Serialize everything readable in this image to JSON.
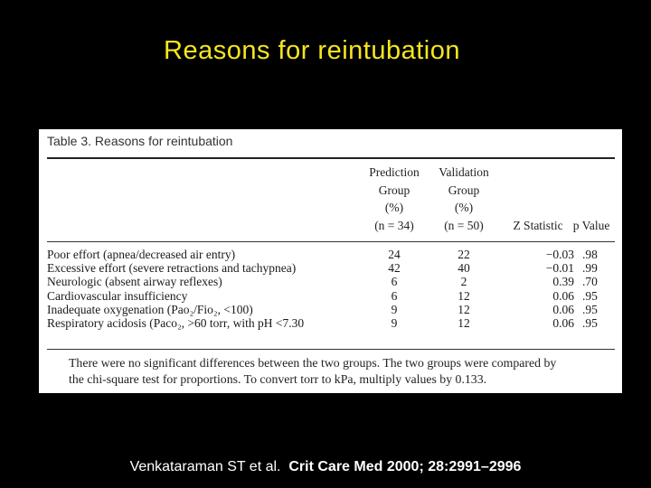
{
  "slide": {
    "title": "Reasons for reintubation"
  },
  "table": {
    "caption": "Table 3. Reasons for reintubation",
    "headers": {
      "prediction": [
        "Prediction",
        "Group",
        "(%)",
        "(n = 34)"
      ],
      "validation": [
        "Validation",
        "Group",
        "(%)",
        "(n = 50)"
      ],
      "z_statistic": "Z Statistic",
      "p_value": "p Value"
    },
    "rows": [
      {
        "reason": "Poor effort (apnea/decreased air entry)",
        "prediction": "24",
        "validation": "22",
        "z": "−0.03",
        "p": ".98"
      },
      {
        "reason": "Excessive effort (severe retractions and tachypnea)",
        "prediction": "42",
        "validation": "40",
        "z": "−0.01",
        "p": ".99"
      },
      {
        "reason": "Neurologic (absent airway reflexes)",
        "prediction": "6",
        "validation": "2",
        "z": "0.39",
        "p": ".70"
      },
      {
        "reason": "Cardiovascular insufficiency",
        "prediction": "6",
        "validation": "12",
        "z": "0.06",
        "p": ".95"
      },
      {
        "reason": "Inadequate oxygenation (Pao₂/Fio₂, <100)",
        "prediction": "9",
        "validation": "12",
        "z": "0.06",
        "p": ".95"
      },
      {
        "reason": "Respiratory acidosis (Paco₂, >60 torr, with pH <7.30",
        "prediction": "9",
        "validation": "12",
        "z": "0.06",
        "p": ".95"
      }
    ],
    "footnote": [
      "There were no significant differences between the two groups. The two groups were compared by",
      "the chi-square test for proportions. To convert torr to kPa, multiply values by 0.133."
    ]
  },
  "citation": {
    "authors": "Venkataraman ST et al.",
    "source": "Crit Care Med 2000; 28:2991–2996"
  }
}
